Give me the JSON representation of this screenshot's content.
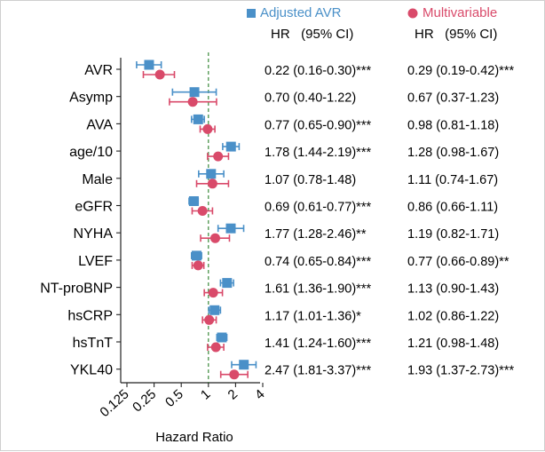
{
  "chart_data": {
    "type": "forest",
    "xscale": "log2",
    "xlim": [
      0.125,
      4
    ],
    "reference_line": 1,
    "xlabel": "Hazard Ratio",
    "xticks": [
      0.125,
      0.25,
      0.5,
      1,
      2,
      4
    ],
    "xtick_labels": [
      "0.125",
      "0.25",
      "0.5",
      "1",
      "2",
      "4"
    ],
    "legend_placement": "top",
    "column_header": "HR   (95% CI)",
    "categories": [
      "AVR",
      "Asymp",
      "AVA",
      "age/10",
      "Male",
      "eGFR",
      "NYHA",
      "LVEF",
      "NT-proBNP",
      "hsCRP",
      "hsTnT",
      "YKL40"
    ],
    "series": [
      {
        "name": "Adjusted AVR",
        "color": "#4a90c8",
        "marker": "square",
        "hr": [
          0.22,
          0.7,
          0.77,
          1.78,
          1.07,
          0.69,
          1.77,
          0.74,
          1.61,
          1.17,
          1.41,
          2.47
        ],
        "lower": [
          0.16,
          0.4,
          0.65,
          1.44,
          0.78,
          0.61,
          1.28,
          0.65,
          1.36,
          1.01,
          1.24,
          1.81
        ],
        "upper": [
          0.3,
          1.22,
          0.9,
          2.19,
          1.48,
          0.77,
          2.46,
          0.84,
          1.9,
          1.36,
          1.6,
          3.37
        ],
        "labels": [
          "0.22 (0.16-0.30)***",
          "0.70 (0.40-1.22)",
          "0.77 (0.65-0.90)***",
          "1.78 (1.44-2.19)***",
          "1.07 (0.78-1.48)",
          "0.69 (0.61-0.77)***",
          "1.77 (1.28-2.46)**",
          "0.74 (0.65-0.84)***",
          "1.61 (1.36-1.90)***",
          "1.17 (1.01-1.36)*",
          "1.41 (1.24-1.60)***",
          "2.47 (1.81-3.37)***"
        ]
      },
      {
        "name": "Multivariable",
        "color": "#d94a6a",
        "marker": "circle",
        "hr": [
          0.29,
          0.67,
          0.98,
          1.28,
          1.11,
          0.86,
          1.19,
          0.77,
          1.13,
          1.02,
          1.21,
          1.93
        ],
        "lower": [
          0.19,
          0.37,
          0.81,
          0.98,
          0.74,
          0.66,
          0.82,
          0.66,
          0.9,
          0.86,
          0.98,
          1.37
        ],
        "upper": [
          0.42,
          1.23,
          1.18,
          1.67,
          1.67,
          1.11,
          1.71,
          0.89,
          1.43,
          1.22,
          1.48,
          2.73
        ],
        "labels": [
          "0.29 (0.19-0.42)***",
          "0.67 (0.37-1.23)",
          "0.98 (0.81-1.18)",
          "1.28 (0.98-1.67)",
          "1.11 (0.74-1.67)",
          "0.86 (0.66-1.11)",
          "1.19 (0.82-1.71)",
          "0.77 (0.66-0.89)**",
          "1.13 (0.90-1.43)",
          "1.02 (0.86-1.22)",
          "1.21 (0.98-1.48)",
          "1.93 (1.37-2.73)***"
        ]
      }
    ]
  }
}
